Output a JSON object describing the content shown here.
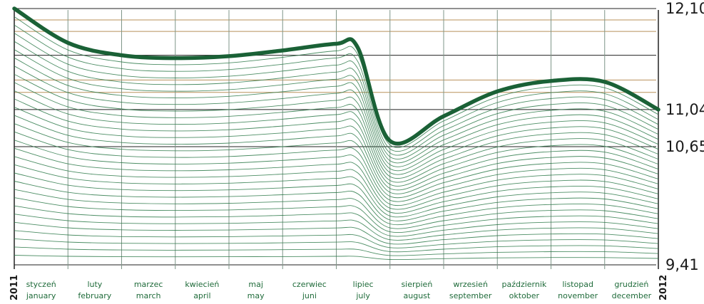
{
  "colors": {
    "main_line": "#1a6136",
    "thin_lines": "#2e7a4a",
    "grid_dark": "#222222",
    "grid_gold": "#b8915a",
    "month_dividers": "#7f9688",
    "month_text": "#1f6b3a"
  },
  "chart_data": {
    "type": "line",
    "title": "",
    "xlabel": "",
    "ylabel": "",
    "x_start_label": "2011",
    "x_end_label": "2012",
    "categories_pl": [
      "styczeń",
      "luty",
      "marzec",
      "kwiecień",
      "maj",
      "czerwiec",
      "lipiec",
      "sierpień",
      "wrzesień",
      "październik",
      "listopad",
      "grudzień"
    ],
    "categories_en": [
      "january",
      "february",
      "march",
      "april",
      "may",
      "juni",
      "july",
      "august",
      "september",
      "oktober",
      "november",
      "december"
    ],
    "y_tick_labels": [
      "12,10",
      "11,04",
      "10,65",
      "9,41"
    ],
    "y_tick_values": [
      12.1,
      11.04,
      10.65,
      9.41
    ],
    "ylim": [
      9.41,
      12.1
    ],
    "grid": true,
    "series": [
      {
        "x": [
          0,
          1,
          2,
          3,
          4,
          5,
          6,
          6.4,
          7,
          8,
          9,
          10,
          11,
          12
        ],
        "values": [
          12.1,
          11.74,
          11.61,
          11.58,
          11.6,
          11.66,
          11.73,
          11.69,
          10.71,
          10.97,
          11.23,
          11.34,
          11.33,
          11.04
        ]
      }
    ]
  }
}
